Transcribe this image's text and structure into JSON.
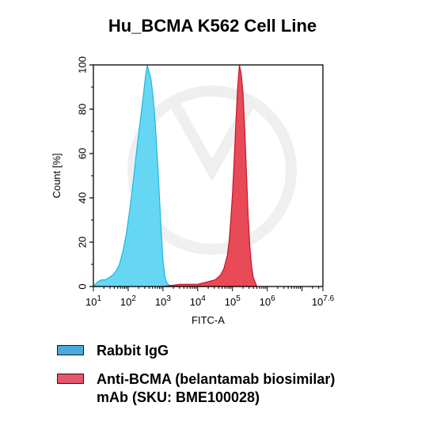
{
  "chart_data": {
    "type": "area",
    "title": "Hu_BCMA K562 Cell Line",
    "xlabel": "FITC-A",
    "ylabel": "Count [%]",
    "xscale": "log",
    "xlim": [
      10,
      39810717
    ],
    "ylim": [
      0,
      100
    ],
    "yticks": [
      "0",
      "20",
      "40",
      "60",
      "80",
      "100"
    ],
    "xticks": [
      {
        "base": "10",
        "exp": "1",
        "value": 10
      },
      {
        "base": "10",
        "exp": "2",
        "value": 100
      },
      {
        "base": "10",
        "exp": "3",
        "value": 1000
      },
      {
        "base": "10",
        "exp": "4",
        "value": 10000
      },
      {
        "base": "10",
        "exp": "5",
        "value": 100000
      },
      {
        "base": "10",
        "exp": "6",
        "value": 1000000
      },
      {
        "base": "10",
        "exp": "7.6",
        "value": 39810717
      }
    ],
    "grid": false,
    "legend_position": "bottom",
    "series": [
      {
        "name": "Rabbit IgG",
        "fill": "#5dd5f2",
        "stroke": "#1fb6e0",
        "legend_swatch": "#4aa8de",
        "x": [
          10,
          13,
          17,
          22,
          28,
          35,
          45,
          56,
          71,
          89,
          112,
          141,
          178,
          224,
          282,
          316,
          355,
          398,
          447,
          501,
          562,
          631,
          708,
          794,
          891,
          1000,
          1122,
          1259,
          1413,
          1585,
          1778
        ],
        "y": [
          0,
          2,
          3,
          3,
          4,
          5,
          7,
          10,
          16,
          24,
          35,
          48,
          62,
          75,
          88,
          95,
          100,
          97,
          94,
          88,
          80,
          68,
          55,
          40,
          25,
          12,
          5,
          2,
          1,
          0.5,
          0
        ]
      },
      {
        "name": "Anti-BCMA (belantamab biosimilar) mAb (SKU: BME100028)",
        "fill": "#e8404e",
        "stroke": "#c01828",
        "legend_swatch": "#e9556a",
        "x": [
          1000,
          1778,
          3162,
          5623,
          10000,
          17783,
          31623,
          44668,
          56234,
          70795,
          79433,
          89125,
          100000,
          112202,
          125893,
          141254,
          158489,
          177828,
          199526,
          223872,
          251189,
          281838,
          316228,
          354813,
          398107,
          446684,
          501187
        ],
        "y": [
          0,
          0.5,
          1,
          1,
          1,
          2,
          3,
          5,
          8,
          14,
          20,
          30,
          42,
          58,
          75,
          90,
          100,
          96,
          88,
          72,
          52,
          32,
          18,
          9,
          4,
          2,
          0
        ]
      }
    ]
  },
  "legend": {
    "items": [
      {
        "label": "Rabbit IgG",
        "color": "#4aa8de"
      },
      {
        "label_line1": "Anti-BCMA (belantamab biosimilar)",
        "label_line2": "mAb (SKU: BME100028)",
        "color": "#e9556a"
      }
    ]
  }
}
